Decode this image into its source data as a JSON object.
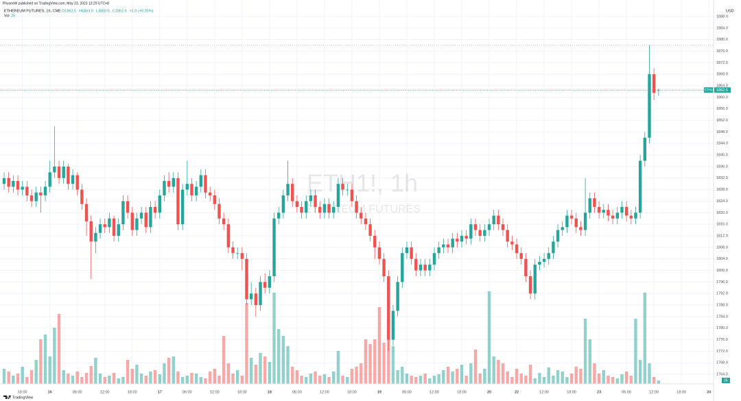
{
  "chart_data": {
    "type": "candlestick",
    "publisher": "PhyseeW published on TradingView.com, May 23, 2023 13:29 UTC+8",
    "title": "ETHEREUM FUTURES, 1h, CME",
    "legend_texts": [
      "O1862.5",
      "H1863.0",
      "L1860.5",
      "C1862.5",
      "+1.0 (+0.05%)"
    ],
    "volume_label": "Vol",
    "watermark": "ETH1!, 1h",
    "watermark_subtitle": "ETHEREUM FUTURES",
    "symbol": "ETH1!",
    "currency": "USD",
    "brand": "TradingView",
    "up_color": "#26a69a",
    "down_color": "#ef5350",
    "grid": true,
    "ylim": [
      1760.7,
      1893.7
    ],
    "yticks": [
      {
        "value": 1888,
        "label": "1888.0"
      },
      {
        "value": 1884,
        "label": "1884.0"
      },
      {
        "value": 1880,
        "label": "1880.0"
      },
      {
        "value": 1876,
        "label": "1876.0"
      },
      {
        "value": 1872,
        "label": "1872.0"
      },
      {
        "value": 1868,
        "label": "1868.0"
      },
      {
        "value": 1864,
        "label": "1864.0"
      },
      {
        "value": 1860,
        "label": "1860.0"
      },
      {
        "value": 1856,
        "label": "1856.0"
      },
      {
        "value": 1852,
        "label": "1852.0"
      },
      {
        "value": 1848,
        "label": "1848.0"
      },
      {
        "value": 1844,
        "label": "1844.0"
      },
      {
        "value": 1840,
        "label": "1840.0"
      },
      {
        "value": 1836,
        "label": "1836.0"
      },
      {
        "value": 1832,
        "label": "1832.0"
      },
      {
        "value": 1828,
        "label": "1828.0"
      },
      {
        "value": 1824,
        "label": "1824.0"
      },
      {
        "value": 1820,
        "label": "1820.0"
      },
      {
        "value": 1816,
        "label": "1816.0"
      },
      {
        "value": 1812,
        "label": "1812.0"
      },
      {
        "value": 1808,
        "label": "1808.0"
      },
      {
        "value": 1804,
        "label": "1804.0"
      },
      {
        "value": 1800,
        "label": "1800.0"
      },
      {
        "value": 1796,
        "label": "1796.0"
      },
      {
        "value": 1792,
        "label": "1792.0"
      },
      {
        "value": 1788,
        "label": "1788.0"
      },
      {
        "value": 1784,
        "label": "1784.0"
      },
      {
        "value": 1780,
        "label": "1780.0"
      },
      {
        "value": 1776,
        "label": "1776.0"
      },
      {
        "value": 1772,
        "label": "1772.0"
      },
      {
        "value": 1768,
        "label": "1768.0"
      },
      {
        "value": 1764,
        "label": "1764.0"
      }
    ],
    "xticks": [
      {
        "value": 4,
        "label": "18:00"
      },
      {
        "value": 10,
        "label": "16"
      },
      {
        "value": 16,
        "label": "06:00"
      },
      {
        "value": 22,
        "label": "12:00"
      },
      {
        "value": 28,
        "label": "18:00"
      },
      {
        "value": 34,
        "label": "17"
      },
      {
        "value": 40,
        "label": "06:00"
      },
      {
        "value": 46,
        "label": "12:00"
      },
      {
        "value": 52,
        "label": "18:00"
      },
      {
        "value": 58,
        "label": "18"
      },
      {
        "value": 64,
        "label": "06:00"
      },
      {
        "value": 70,
        "label": "12:00"
      },
      {
        "value": 76,
        "label": "18:00"
      },
      {
        "value": 82,
        "label": "19"
      },
      {
        "value": 88,
        "label": "06:00"
      },
      {
        "value": 94,
        "label": "12:00"
      },
      {
        "value": 100,
        "label": "18:00"
      },
      {
        "value": 106,
        "label": "20"
      },
      {
        "value": 112,
        "label": "22"
      },
      {
        "value": 118,
        "label": "12:00"
      },
      {
        "value": 124,
        "label": "18:00"
      },
      {
        "value": 130,
        "label": "23"
      },
      {
        "value": 136,
        "label": "06:00"
      },
      {
        "value": 142,
        "label": "12:00"
      },
      {
        "value": 148,
        "label": "18:00"
      },
      {
        "value": 154,
        "label": "24"
      }
    ],
    "open": [
      1830,
      1832,
      1829,
      1831,
      1828,
      1829,
      1826,
      1824,
      1827,
      1826,
      1829,
      1834,
      1836,
      1832,
      1836,
      1830,
      1833,
      1828,
      1823,
      1817,
      1810,
      1813,
      1816,
      1815,
      1818,
      1812,
      1816,
      1824,
      1820,
      1814,
      1818,
      1820,
      1815,
      1822,
      1820,
      1826,
      1831,
      1829,
      1832,
      1816,
      1828,
      1830,
      1826,
      1829,
      1833,
      1827,
      1826,
      1823,
      1818,
      1816,
      1808,
      1806,
      1806,
      1804,
      1790,
      1792,
      1788,
      1796,
      1794,
      1798,
      1818,
      1820,
      1826,
      1830,
      1824,
      1822,
      1820,
      1824,
      1826,
      1822,
      1820,
      1823,
      1820,
      1822,
      1830,
      1828,
      1828,
      1824,
      1820,
      1818,
      1816,
      1812,
      1808,
      1804,
      1798,
      1776,
      1786,
      1796,
      1806,
      1808,
      1804,
      1800,
      1802,
      1800,
      1802,
      1806,
      1808,
      1809,
      1808,
      1811,
      1810,
      1812,
      1811,
      1816,
      1814,
      1812,
      1814,
      1816,
      1819,
      1816,
      1814,
      1810,
      1809,
      1806,
      1804,
      1798,
      1792,
      1802,
      1803,
      1804,
      1806,
      1810,
      1814,
      1815,
      1819,
      1818,
      1815,
      1814,
      1820,
      1825,
      1822,
      1820,
      1821,
      1819,
      1818,
      1820,
      1822,
      1819,
      1818,
      1820,
      1838,
      1846,
      1868,
      1862.5
    ],
    "high": [
      1834,
      1834,
      1833,
      1833,
      1831,
      1831,
      1828,
      1829,
      1829,
      1831,
      1838,
      1850,
      1838,
      1838,
      1837,
      1835,
      1834,
      1830,
      1825,
      1819,
      1815,
      1818,
      1818,
      1820,
      1819,
      1818,
      1826,
      1826,
      1822,
      1820,
      1822,
      1822,
      1824,
      1824,
      1828,
      1833,
      1834,
      1834,
      1834,
      1830,
      1838,
      1832,
      1831,
      1835,
      1835,
      1829,
      1828,
      1825,
      1820,
      1818,
      1810,
      1808,
      1808,
      1806,
      1796,
      1794,
      1798,
      1799,
      1800,
      1820,
      1822,
      1828,
      1838,
      1832,
      1826,
      1824,
      1826,
      1828,
      1828,
      1824,
      1825,
      1825,
      1824,
      1832,
      1832,
      1830,
      1830,
      1826,
      1822,
      1820,
      1818,
      1814,
      1810,
      1806,
      1800,
      1788,
      1798,
      1808,
      1810,
      1810,
      1806,
      1804,
      1804,
      1804,
      1808,
      1810,
      1811,
      1811,
      1813,
      1813,
      1814,
      1814,
      1818,
      1818,
      1816,
      1816,
      1818,
      1821,
      1821,
      1818,
      1816,
      1812,
      1811,
      1808,
      1806,
      1800,
      1804,
      1805,
      1806,
      1808,
      1812,
      1816,
      1817,
      1821,
      1821,
      1820,
      1817,
      1832,
      1827,
      1827,
      1824,
      1823,
      1823,
      1821,
      1822,
      1824,
      1824,
      1821,
      1822,
      1840,
      1848,
      1878,
      1870,
      1863
    ],
    "low": [
      1828,
      1827,
      1827,
      1826,
      1826,
      1824,
      1822,
      1822,
      1820,
      1824,
      1827,
      1832,
      1830,
      1830,
      1828,
      1828,
      1826,
      1821,
      1812,
      1797,
      1806,
      1811,
      1813,
      1813,
      1810,
      1810,
      1814,
      1818,
      1812,
      1812,
      1816,
      1813,
      1813,
      1818,
      1818,
      1824,
      1827,
      1827,
      1814,
      1814,
      1826,
      1824,
      1824,
      1827,
      1825,
      1824,
      1821,
      1816,
      1814,
      1806,
      1804,
      1804,
      1800,
      1788,
      1788,
      1784,
      1786,
      1792,
      1792,
      1796,
      1816,
      1818,
      1824,
      1822,
      1820,
      1818,
      1818,
      1822,
      1820,
      1818,
      1818,
      1818,
      1818,
      1820,
      1826,
      1826,
      1822,
      1818,
      1816,
      1814,
      1810,
      1804,
      1802,
      1796,
      1772,
      1774,
      1784,
      1794,
      1804,
      1802,
      1798,
      1798,
      1798,
      1798,
      1800,
      1804,
      1806,
      1806,
      1806,
      1808,
      1808,
      1809,
      1809,
      1812,
      1810,
      1810,
      1812,
      1814,
      1814,
      1812,
      1808,
      1807,
      1804,
      1802,
      1796,
      1790,
      1790,
      1800,
      1801,
      1802,
      1804,
      1808,
      1812,
      1813,
      1816,
      1813,
      1812,
      1812,
      1818,
      1820,
      1818,
      1818,
      1817,
      1816,
      1816,
      1818,
      1817,
      1816,
      1816,
      1818,
      1836,
      1844,
      1859,
      1860.5
    ],
    "close": [
      1832,
      1829,
      1831,
      1828,
      1829,
      1826,
      1824,
      1827,
      1826,
      1829,
      1834,
      1836,
      1832,
      1836,
      1830,
      1833,
      1828,
      1823,
      1817,
      1810,
      1813,
      1816,
      1815,
      1818,
      1812,
      1816,
      1824,
      1820,
      1814,
      1818,
      1820,
      1815,
      1822,
      1820,
      1826,
      1831,
      1829,
      1832,
      1816,
      1828,
      1830,
      1826,
      1829,
      1833,
      1827,
      1826,
      1823,
      1818,
      1816,
      1808,
      1806,
      1806,
      1804,
      1790,
      1792,
      1788,
      1796,
      1794,
      1798,
      1818,
      1820,
      1826,
      1830,
      1824,
      1822,
      1820,
      1824,
      1826,
      1822,
      1820,
      1823,
      1820,
      1822,
      1830,
      1828,
      1828,
      1824,
      1820,
      1818,
      1816,
      1812,
      1808,
      1804,
      1798,
      1776,
      1786,
      1796,
      1806,
      1808,
      1804,
      1800,
      1802,
      1800,
      1802,
      1806,
      1808,
      1809,
      1808,
      1811,
      1810,
      1812,
      1811,
      1816,
      1814,
      1812,
      1814,
      1816,
      1819,
      1816,
      1814,
      1810,
      1809,
      1806,
      1804,
      1798,
      1792,
      1802,
      1803,
      1804,
      1806,
      1810,
      1814,
      1815,
      1819,
      1818,
      1815,
      1814,
      1820,
      1825,
      1822,
      1820,
      1821,
      1819,
      1818,
      1820,
      1822,
      1819,
      1818,
      1820,
      1838,
      1846,
      1868,
      1861.5,
      1862.5
    ],
    "volume": [
      110,
      90,
      60,
      75,
      125,
      50,
      100,
      175,
      325,
      360,
      200,
      410,
      510,
      100,
      75,
      60,
      90,
      50,
      80,
      130,
      190,
      75,
      50,
      60,
      80,
      40,
      50,
      175,
      110,
      140,
      75,
      60,
      90,
      100,
      70,
      150,
      190,
      200,
      90,
      50,
      60,
      80,
      75,
      50,
      40,
      90,
      110,
      60,
      350,
      150,
      75,
      100,
      60,
      590,
      190,
      140,
      225,
      200,
      160,
      665,
      400,
      350,
      275,
      125,
      100,
      60,
      50,
      75,
      90,
      60,
      70,
      50,
      90,
      240,
      60,
      50,
      110,
      125,
      150,
      325,
      290,
      325,
      560,
      300,
      350,
      275,
      100,
      125,
      75,
      60,
      50,
      60,
      75,
      40,
      60,
      70,
      100,
      125,
      90,
      110,
      140,
      60,
      150,
      250,
      75,
      110,
      675,
      200,
      175,
      150,
      90,
      50,
      110,
      75,
      60,
      140,
      40,
      80,
      50,
      120,
      60,
      100,
      90,
      50,
      75,
      125,
      110,
      475,
      325,
      150,
      75,
      100,
      60,
      50,
      40,
      70,
      90,
      60,
      475,
      175,
      665,
      150,
      50,
      25
    ]
  }
}
